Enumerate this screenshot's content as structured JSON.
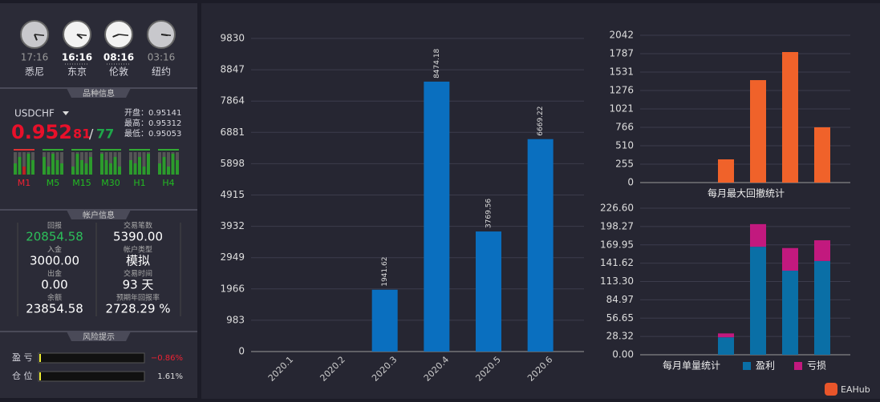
{
  "clocks": [
    {
      "time": "17:16",
      "city": "悉尼"
    },
    {
      "time": "16:16",
      "city": "东京"
    },
    {
      "time": "08:16",
      "city": "伦敦"
    },
    {
      "time": "03:16",
      "city": "纽约"
    }
  ],
  "symbol_info": {
    "title": "品种信息",
    "symbol": "USDCHF",
    "price_main": "0.952",
    "price_bid": "81",
    "separator": "/",
    "price_ask": "77",
    "open": "开盘：0.95141",
    "high": "最高：0.95312",
    "low": "最低：0.95053",
    "timeframes": [
      "M1",
      "M5",
      "M15",
      "M30",
      "H1",
      "H4"
    ]
  },
  "account": {
    "title": "帐户信息",
    "items": [
      {
        "label": "回报",
        "value": "20854.58"
      },
      {
        "label": "交易笔数",
        "value": "5390.00"
      },
      {
        "label": "入金",
        "value": "3000.00"
      },
      {
        "label": "帐户类型",
        "value": "模拟"
      },
      {
        "label": "出金",
        "value": "0.00"
      },
      {
        "label": "交易时间",
        "value": "93 天"
      },
      {
        "label": "余额",
        "value": "23854.58"
      },
      {
        "label": "预期年回报率",
        "value": "2728.29 %"
      }
    ]
  },
  "risk": {
    "title": "风险提示",
    "items": [
      {
        "label": "盈 亏",
        "value": "−0.86%"
      },
      {
        "label": "仓 位",
        "value": "1.61%"
      }
    ]
  },
  "watermark": "EAHub",
  "chart_data": [
    {
      "type": "bar",
      "categories": [
        "2020.1",
        "2020.2",
        "2020.3",
        "2020.4",
        "2020.5",
        "2020.6"
      ],
      "values": [
        null,
        null,
        1941.62,
        8474.18,
        3769.56,
        6669.22
      ],
      "color": "#0a6fbf",
      "ylim": [
        0,
        9830
      ],
      "yticks": [
        0,
        983,
        1966,
        2949,
        3932,
        4915,
        5898,
        6881,
        7864,
        8847,
        9830
      ],
      "grid": true
    },
    {
      "type": "bar",
      "xlabel": "每月最大回撤统计",
      "categories": [
        null,
        null,
        null,
        null,
        null,
        null
      ],
      "values": [
        null,
        null,
        322,
        1420,
        1809,
        766
      ],
      "color": "#f0622a",
      "ylim": [
        0,
        2042
      ],
      "yticks": [
        0,
        255,
        510,
        766,
        1021,
        1276,
        1531,
        1787,
        2042
      ],
      "grid": true
    },
    {
      "type": "stacked_bar",
      "xlabel": "每月单量统计",
      "categories": [
        null,
        null,
        null,
        null,
        null,
        null
      ],
      "series": [
        {
          "name": "盈利",
          "color": "#0a6fa6",
          "values": [
            null,
            null,
            27,
            167,
            130,
            145
          ]
        },
        {
          "name": "亏损",
          "color": "#c2197e",
          "values": [
            null,
            null,
            6,
            35,
            35,
            32
          ]
        }
      ],
      "ylim": [
        0,
        226.6
      ],
      "yticks": [
        {
          "value": 0,
          "label": "0.00"
        },
        28.32,
        56.65,
        84.97,
        {
          "value": 113.3,
          "label": "113.30"
        },
        141.62,
        169.95,
        198.27,
        {
          "value": 226.6,
          "label": "226.60"
        }
      ],
      "grid": true
    }
  ]
}
